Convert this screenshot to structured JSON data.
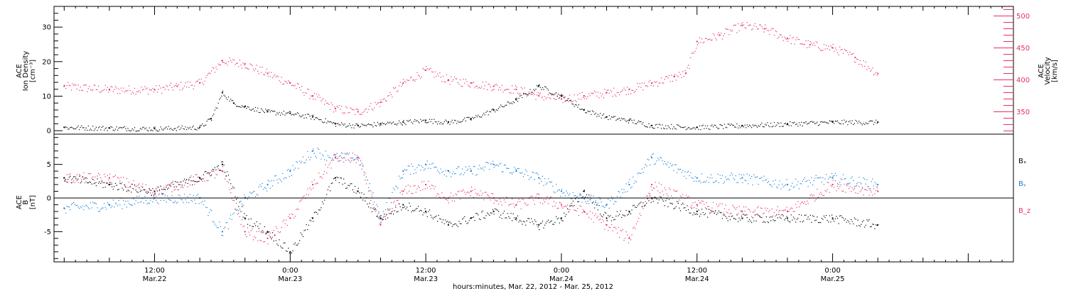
{
  "chart_data": [
    {
      "type": "scatter",
      "panel": "top",
      "ylabel_left": [
        "ACE",
        "Ion Density",
        "[cm⁻³]"
      ],
      "ylabel_right": [
        "ACE",
        "Velocity",
        "[km/s]"
      ],
      "ylim_left": [
        -1,
        36
      ],
      "yticks_left": [
        0,
        10,
        20,
        30
      ],
      "ylim_right": [
        315,
        515
      ],
      "yticks_right": [
        350,
        400,
        450,
        500
      ],
      "colors": {
        "density": "#000000",
        "velocity": "#e8325f"
      },
      "series": [
        {
          "name": "Ion Density",
          "axis": "left",
          "color": "#000000",
          "x": [
            "2012-03-22T04:00",
            "2012-03-22T08:00",
            "2012-03-22T12:00",
            "2012-03-22T16:00",
            "2012-03-22T17:00",
            "2012-03-22T18:00",
            "2012-03-22T19:00",
            "2012-03-22T20:00",
            "2012-03-22T22:00",
            "2012-03-23T00:00",
            "2012-03-23T02:00",
            "2012-03-23T04:00",
            "2012-03-23T06:00",
            "2012-03-23T08:00",
            "2012-03-23T10:00",
            "2012-03-23T12:00",
            "2012-03-23T14:00",
            "2012-03-23T16:00",
            "2012-03-23T18:00",
            "2012-03-23T20:00",
            "2012-03-23T22:00",
            "2012-03-24T00:00",
            "2012-03-24T02:00",
            "2012-03-24T04:00",
            "2012-03-24T06:00",
            "2012-03-24T08:00",
            "2012-03-24T12:00",
            "2012-03-24T16:00",
            "2012-03-24T20:00",
            "2012-03-25T00:00",
            "2012-03-25T04:00"
          ],
          "y": [
            1,
            0.8,
            0.6,
            1,
            3.5,
            11,
            8,
            7,
            5.5,
            5,
            4,
            2,
            1.5,
            2,
            2.5,
            3,
            2.5,
            3.5,
            6,
            9,
            13,
            10,
            6,
            4,
            3,
            1.5,
            1,
            1.5,
            2,
            2.5,
            2.5
          ]
        },
        {
          "name": "Velocity",
          "axis": "right",
          "color": "#e8325f",
          "x": [
            "2012-03-22T04:00",
            "2012-03-22T08:00",
            "2012-03-22T12:00",
            "2012-03-22T14:00",
            "2012-03-22T16:00",
            "2012-03-22T18:00",
            "2012-03-22T20:00",
            "2012-03-22T22:00",
            "2012-03-23T00:00",
            "2012-03-23T02:00",
            "2012-03-23T04:00",
            "2012-03-23T06:00",
            "2012-03-23T08:00",
            "2012-03-23T10:00",
            "2012-03-23T12:00",
            "2012-03-23T14:00",
            "2012-03-23T16:00",
            "2012-03-23T18:00",
            "2012-03-23T20:00",
            "2012-03-23T22:00",
            "2012-03-24T00:00",
            "2012-03-24T02:00",
            "2012-03-24T04:00",
            "2012-03-24T06:00",
            "2012-03-24T08:00",
            "2012-03-24T10:00",
            "2012-03-24T11:00",
            "2012-03-24T12:00",
            "2012-03-24T14:00",
            "2012-03-24T16:00",
            "2012-03-24T18:00",
            "2012-03-24T20:00",
            "2012-03-24T22:00",
            "2012-03-25T00:00",
            "2012-03-25T02:00",
            "2012-03-25T04:00"
          ],
          "y": [
            390,
            385,
            385,
            390,
            395,
            430,
            425,
            410,
            395,
            375,
            355,
            350,
            365,
            395,
            415,
            400,
            395,
            390,
            385,
            375,
            370,
            375,
            380,
            385,
            395,
            405,
            410,
            460,
            470,
            485,
            480,
            465,
            455,
            450,
            435,
            410
          ]
        }
      ]
    },
    {
      "type": "scatter",
      "panel": "bottom",
      "ylabel_left": [
        "ACE",
        "B",
        "[nT]"
      ],
      "ylim": [
        -9.5,
        9.5
      ],
      "yticks": [
        -5,
        0,
        5
      ],
      "xlabel": "hours:minutes, Mar. 22, 2012 - Mar. 25, 2012",
      "x_ticks": [
        {
          "top": "12:00",
          "bottom": "Mar.22"
        },
        {
          "top": "0:00",
          "bottom": "Mar.23"
        },
        {
          "top": "12:00",
          "bottom": "Mar.23"
        },
        {
          "top": "0:00",
          "bottom": "Mar.24"
        },
        {
          "top": "12:00",
          "bottom": "Mar.24"
        },
        {
          "top": "0:00",
          "bottom": "Mar.25"
        }
      ],
      "legend": [
        "Bₓ",
        "Bᵧ",
        "B_z"
      ],
      "legend_placement": "right",
      "colors": {
        "Bx": "#000000",
        "By": "#1a7fd8",
        "Bz": "#e8325f"
      },
      "series": [
        {
          "name": "Bₓ",
          "color": "#000000",
          "x": [
            "2012-03-22T04:00",
            "2012-03-22T08:00",
            "2012-03-22T12:00",
            "2012-03-22T16:00",
            "2012-03-22T18:00",
            "2012-03-22T20:00",
            "2012-03-22T22:00",
            "2012-03-23T00:00",
            "2012-03-23T02:00",
            "2012-03-23T04:00",
            "2012-03-23T06:00",
            "2012-03-23T08:00",
            "2012-03-23T10:00",
            "2012-03-23T12:00",
            "2012-03-23T14:00",
            "2012-03-23T16:00",
            "2012-03-23T18:00",
            "2012-03-23T20:00",
            "2012-03-23T22:00",
            "2012-03-24T00:00",
            "2012-03-24T02:00",
            "2012-03-24T04:00",
            "2012-03-24T06:00",
            "2012-03-24T08:00",
            "2012-03-24T12:00",
            "2012-03-24T16:00",
            "2012-03-24T20:00",
            "2012-03-25T00:00",
            "2012-03-25T04:00"
          ],
          "y": [
            3,
            2,
            1,
            3,
            5,
            -3,
            -5,
            -8,
            -3,
            3,
            1,
            -3,
            -1,
            -2,
            -4,
            -3,
            -2,
            -3,
            -4,
            -3,
            1,
            -3,
            -2,
            0,
            -2,
            -3,
            -3,
            -3,
            -4
          ]
        },
        {
          "name": "Bᵧ",
          "color": "#1a7fd8",
          "x": [
            "2012-03-22T04:00",
            "2012-03-22T08:00",
            "2012-03-22T12:00",
            "2012-03-22T16:00",
            "2012-03-22T18:00",
            "2012-03-22T20:00",
            "2012-03-22T22:00",
            "2012-03-23T00:00",
            "2012-03-23T02:00",
            "2012-03-23T04:00",
            "2012-03-23T06:00",
            "2012-03-23T08:00",
            "2012-03-23T10:00",
            "2012-03-23T12:00",
            "2012-03-23T14:00",
            "2012-03-23T16:00",
            "2012-03-23T18:00",
            "2012-03-23T20:00",
            "2012-03-23T22:00",
            "2012-03-24T00:00",
            "2012-03-24T02:00",
            "2012-03-24T04:00",
            "2012-03-24T06:00",
            "2012-03-24T08:00",
            "2012-03-24T12:00",
            "2012-03-24T16:00",
            "2012-03-24T20:00",
            "2012-03-25T00:00",
            "2012-03-25T04:00"
          ],
          "y": [
            -1.5,
            -1,
            0,
            0,
            -5,
            0,
            2,
            4,
            7,
            6,
            6,
            -3,
            4,
            5,
            4,
            4,
            5,
            4,
            3,
            1,
            0,
            -1,
            2,
            6,
            3,
            3,
            2,
            3,
            2
          ]
        },
        {
          "name": "B_z",
          "color": "#e8325f",
          "x": [
            "2012-03-22T04:00",
            "2012-03-22T08:00",
            "2012-03-22T12:00",
            "2012-03-22T16:00",
            "2012-03-22T18:00",
            "2012-03-22T20:00",
            "2012-03-22T22:00",
            "2012-03-23T00:00",
            "2012-03-23T02:00",
            "2012-03-23T04:00",
            "2012-03-23T06:00",
            "2012-03-23T08:00",
            "2012-03-23T10:00",
            "2012-03-23T12:00",
            "2012-03-23T14:00",
            "2012-03-23T16:00",
            "2012-03-23T18:00",
            "2012-03-23T20:00",
            "2012-03-23T22:00",
            "2012-03-24T00:00",
            "2012-03-24T02:00",
            "2012-03-24T04:00",
            "2012-03-24T06:00",
            "2012-03-24T08:00",
            "2012-03-24T12:00",
            "2012-03-24T16:00",
            "2012-03-24T20:00",
            "2012-03-25T00:00",
            "2012-03-25T04:00"
          ],
          "y": [
            3,
            3,
            1,
            3,
            4,
            -5,
            -6,
            -3,
            2,
            6,
            6,
            -4,
            1,
            2,
            0,
            1,
            0,
            -1,
            0,
            -1,
            -2,
            -4,
            -6,
            2,
            -1,
            -2,
            -2,
            2,
            1
          ]
        }
      ]
    }
  ]
}
